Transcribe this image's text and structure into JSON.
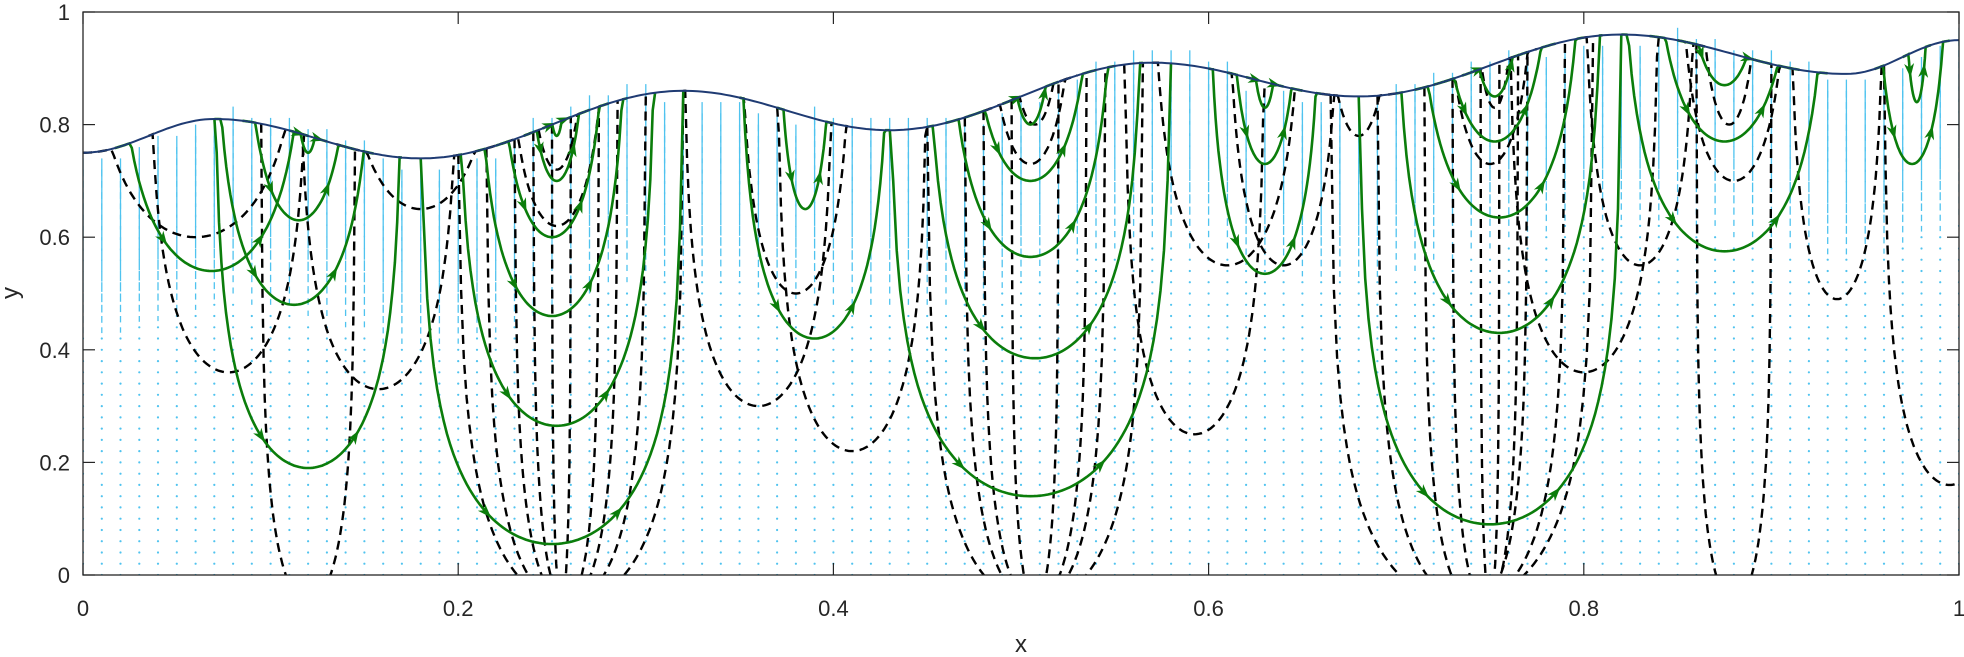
{
  "chart_data": {
    "type": "line",
    "title": "",
    "xlabel": "x",
    "ylabel": "y",
    "xlim": [
      0,
      1
    ],
    "ylim": [
      0,
      1
    ],
    "xticks": [
      "0",
      "0.2",
      "0.4",
      "0.6",
      "0.8",
      "1"
    ],
    "yticks": [
      "0",
      "0.2",
      "0.4",
      "0.6",
      "0.8",
      "1"
    ],
    "grid": false,
    "legend": "none",
    "colors": {
      "surface": "#1f3b73",
      "streamlines": "#0b7d0b",
      "contours": "#000000",
      "velocity_field": "#4fc3ef",
      "axes": "#262626"
    },
    "free_surface": {
      "x": [
        0,
        0.07,
        0.18,
        0.32,
        0.43,
        0.57,
        0.68,
        0.82,
        0.94,
        1.0
      ],
      "y": [
        0.75,
        0.81,
        0.74,
        0.86,
        0.79,
        0.91,
        0.85,
        0.96,
        0.89,
        0.95
      ]
    },
    "streamlines": [
      {
        "x_left": 0.017,
        "x_right": 0.12,
        "y_bottom": 0.54
      },
      {
        "x_left": 0.07,
        "x_right": 0.17,
        "y_bottom": 0.19
      },
      {
        "x_left": 0.07,
        "x_right": 0.155,
        "y_bottom": 0.48
      },
      {
        "x_left": 0.085,
        "x_right": 0.145,
        "y_bottom": 0.63
      },
      {
        "x_left": 0.11,
        "x_right": 0.13,
        "y_bottom": 0.75
      },
      {
        "x_left": 0.18,
        "x_right": 0.32,
        "y_bottom": 0.055
      },
      {
        "x_left": 0.2,
        "x_right": 0.305,
        "y_bottom": 0.265
      },
      {
        "x_left": 0.21,
        "x_right": 0.29,
        "y_bottom": 0.46
      },
      {
        "x_left": 0.22,
        "x_right": 0.28,
        "y_bottom": 0.6
      },
      {
        "x_left": 0.235,
        "x_right": 0.27,
        "y_bottom": 0.7
      },
      {
        "x_left": 0.245,
        "x_right": 0.26,
        "y_bottom": 0.78
      },
      {
        "x_left": 0.35,
        "x_right": 0.43,
        "y_bottom": 0.42
      },
      {
        "x_left": 0.37,
        "x_right": 0.4,
        "y_bottom": 0.65
      },
      {
        "x_left": 0.43,
        "x_right": 0.58,
        "y_bottom": 0.14
      },
      {
        "x_left": 0.45,
        "x_right": 0.565,
        "y_bottom": 0.385
      },
      {
        "x_left": 0.46,
        "x_right": 0.55,
        "y_bottom": 0.565
      },
      {
        "x_left": 0.47,
        "x_right": 0.54,
        "y_bottom": 0.7
      },
      {
        "x_left": 0.49,
        "x_right": 0.52,
        "y_bottom": 0.8
      },
      {
        "x_left": 0.6,
        "x_right": 0.66,
        "y_bottom": 0.535
      },
      {
        "x_left": 0.61,
        "x_right": 0.65,
        "y_bottom": 0.73
      },
      {
        "x_left": 0.62,
        "x_right": 0.64,
        "y_bottom": 0.83
      },
      {
        "x_left": 0.68,
        "x_right": 0.82,
        "y_bottom": 0.09
      },
      {
        "x_left": 0.7,
        "x_right": 0.81,
        "y_bottom": 0.43
      },
      {
        "x_left": 0.71,
        "x_right": 0.8,
        "y_bottom": 0.635
      },
      {
        "x_left": 0.72,
        "x_right": 0.785,
        "y_bottom": 0.77
      },
      {
        "x_left": 0.735,
        "x_right": 0.77,
        "y_bottom": 0.85
      },
      {
        "x_left": 0.82,
        "x_right": 0.93,
        "y_bottom": 0.575
      },
      {
        "x_left": 0.835,
        "x_right": 0.915,
        "y_bottom": 0.77
      },
      {
        "x_left": 0.85,
        "x_right": 0.9,
        "y_bottom": 0.87
      },
      {
        "x_left": 0.955,
        "x_right": 0.995,
        "y_bottom": 0.73
      },
      {
        "x_left": 0.97,
        "x_right": 0.985,
        "y_bottom": 0.84
      }
    ],
    "contours": [
      {
        "x_left": 0,
        "x_right": 0.12,
        "y_bottom": 0.6
      },
      {
        "x_left": 0.035,
        "x_right": 0.12,
        "y_bottom": 0.36
      },
      {
        "x_left": 0.095,
        "x_right": 0.145,
        "y_bottom": -0.05
      },
      {
        "x_left": 0.115,
        "x_right": 0.2,
        "y_bottom": 0.33
      },
      {
        "x_left": 0.135,
        "x_right": 0.225,
        "y_bottom": 0.65
      },
      {
        "x_left": 0.2,
        "x_right": 0.32,
        "y_bottom": -0.05
      },
      {
        "x_left": 0.215,
        "x_right": 0.3,
        "y_bottom": -0.05
      },
      {
        "x_left": 0.23,
        "x_right": 0.285,
        "y_bottom": -0.05
      },
      {
        "x_left": 0.24,
        "x_right": 0.275,
        "y_bottom": -0.05
      },
      {
        "x_left": 0.25,
        "x_right": 0.26,
        "y_bottom": -0.05
      },
      {
        "x_left": 0.225,
        "x_right": 0.28,
        "y_bottom": 0.62
      },
      {
        "x_left": 0.235,
        "x_right": 0.27,
        "y_bottom": 0.72
      },
      {
        "x_left": 0.32,
        "x_right": 0.4,
        "y_bottom": 0.3
      },
      {
        "x_left": 0.37,
        "x_right": 0.45,
        "y_bottom": 0.22
      },
      {
        "x_left": 0.35,
        "x_right": 0.41,
        "y_bottom": 0.5
      },
      {
        "x_left": 0.45,
        "x_right": 0.565,
        "y_bottom": -0.05
      },
      {
        "x_left": 0.47,
        "x_right": 0.545,
        "y_bottom": -0.05
      },
      {
        "x_left": 0.48,
        "x_right": 0.535,
        "y_bottom": -0.05
      },
      {
        "x_left": 0.495,
        "x_right": 0.52,
        "y_bottom": -0.05
      },
      {
        "x_left": 0.48,
        "x_right": 0.53,
        "y_bottom": 0.73
      },
      {
        "x_left": 0.49,
        "x_right": 0.525,
        "y_bottom": 0.8
      },
      {
        "x_left": 0.555,
        "x_right": 0.63,
        "y_bottom": 0.25
      },
      {
        "x_left": 0.57,
        "x_right": 0.65,
        "y_bottom": 0.55
      },
      {
        "x_left": 0.61,
        "x_right": 0.67,
        "y_bottom": 0.55
      },
      {
        "x_left": 0.66,
        "x_right": 0.7,
        "y_bottom": 0.78
      },
      {
        "x_left": 0.665,
        "x_right": 0.805,
        "y_bottom": -0.05
      },
      {
        "x_left": 0.69,
        "x_right": 0.79,
        "y_bottom": -0.05
      },
      {
        "x_left": 0.715,
        "x_right": 0.77,
        "y_bottom": -0.05
      },
      {
        "x_left": 0.73,
        "x_right": 0.765,
        "y_bottom": -0.05
      },
      {
        "x_left": 0.745,
        "x_right": 0.755,
        "y_bottom": -0.05
      },
      {
        "x_left": 0.725,
        "x_right": 0.775,
        "y_bottom": 0.73
      },
      {
        "x_left": 0.74,
        "x_right": 0.765,
        "y_bottom": 0.83
      },
      {
        "x_left": 0.76,
        "x_right": 0.84,
        "y_bottom": 0.36
      },
      {
        "x_left": 0.8,
        "x_right": 0.86,
        "y_bottom": 0.55
      },
      {
        "x_left": 0.86,
        "x_right": 0.9,
        "y_bottom": -0.05
      },
      {
        "x_left": 0.85,
        "x_right": 0.91,
        "y_bottom": 0.7
      },
      {
        "x_left": 0.86,
        "x_right": 0.895,
        "y_bottom": 0.8
      },
      {
        "x_left": 0.91,
        "x_right": 0.96,
        "y_bottom": 0.49
      },
      {
        "x_left": 0.96,
        "x_right": 1.03,
        "y_bottom": 0.16
      }
    ]
  }
}
